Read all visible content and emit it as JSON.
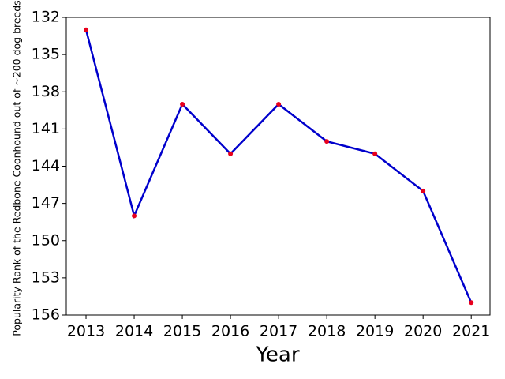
{
  "chart_data": {
    "type": "line",
    "x_label": "Year",
    "y_label": "Popularity Rank of the Redbone Coonhound out of ~200 dog breeds",
    "x": [
      2013,
      2014,
      2015,
      2016,
      2017,
      2018,
      2019,
      2020,
      2021
    ],
    "series": [
      {
        "color": "#0000cc",
        "marker_color": "#e8001c",
        "values": [
          133,
          148,
          139,
          143,
          139,
          142,
          143,
          146,
          155
        ]
      }
    ],
    "xlim": [
      2012.59,
      2021.39
    ],
    "xticks": [
      2013,
      2014,
      2015,
      2016,
      2017,
      2018,
      2019,
      2020,
      2021
    ],
    "ylim": [
      156,
      132
    ],
    "yticks": [
      132,
      135,
      138,
      141,
      144,
      147,
      150,
      153,
      156
    ],
    "y_inverted": true
  }
}
